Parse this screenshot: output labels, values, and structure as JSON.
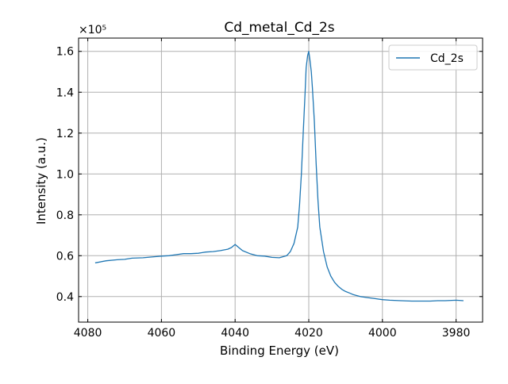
{
  "chart_data": {
    "type": "line",
    "title": "Cd_metal_Cd_2s",
    "xlabel": "Binding Energy (eV)",
    "ylabel": "Intensity (a.u.)",
    "y_multiplier": "×10⁵",
    "x_reversed": true,
    "xlim": [
      4082.5,
      3972.8
    ],
    "ylim": [
      0.275,
      1.665
    ],
    "x_ticks": [
      4080,
      4060,
      4040,
      4020,
      4000,
      3980
    ],
    "y_ticks": [
      0.4,
      0.6,
      0.8,
      1.0,
      1.2,
      1.4,
      1.6
    ],
    "grid": true,
    "legend_position": "top-right",
    "series": [
      {
        "name": "Cd_2s",
        "color": "#1f77b4",
        "x": [
          4078,
          4075,
          4072,
          4070,
          4068,
          4065,
          4062,
          4060,
          4058,
          4056,
          4054,
          4052,
          4050,
          4048,
          4046,
          4044,
          4042,
          4041,
          4040,
          4039,
          4038,
          4036,
          4034,
          4032,
          4030,
          4028,
          4026,
          4025,
          4024,
          4023,
          4022.5,
          4022,
          4021.5,
          4021,
          4020.7,
          4020.3,
          4020,
          4019.7,
          4019.3,
          4019,
          4018.5,
          4018,
          4017.5,
          4017,
          4016,
          4015,
          4014,
          4013,
          4012,
          4011,
          4010,
          4009,
          4008,
          4007,
          4006,
          4004,
          4002,
          4000,
          3998,
          3995,
          3992,
          3990,
          3987,
          3985,
          3983,
          3980,
          3978
        ],
        "y": [
          0.565,
          0.575,
          0.58,
          0.582,
          0.588,
          0.59,
          0.595,
          0.598,
          0.6,
          0.605,
          0.61,
          0.61,
          0.612,
          0.618,
          0.62,
          0.625,
          0.632,
          0.64,
          0.655,
          0.64,
          0.625,
          0.61,
          0.6,
          0.598,
          0.592,
          0.59,
          0.6,
          0.62,
          0.66,
          0.74,
          0.85,
          1.0,
          1.2,
          1.4,
          1.52,
          1.58,
          1.6,
          1.56,
          1.5,
          1.42,
          1.26,
          1.05,
          0.87,
          0.74,
          0.62,
          0.545,
          0.5,
          0.47,
          0.45,
          0.435,
          0.425,
          0.418,
          0.41,
          0.405,
          0.4,
          0.395,
          0.39,
          0.385,
          0.382,
          0.38,
          0.378,
          0.378,
          0.378,
          0.38,
          0.38,
          0.382,
          0.38
        ]
      }
    ]
  }
}
